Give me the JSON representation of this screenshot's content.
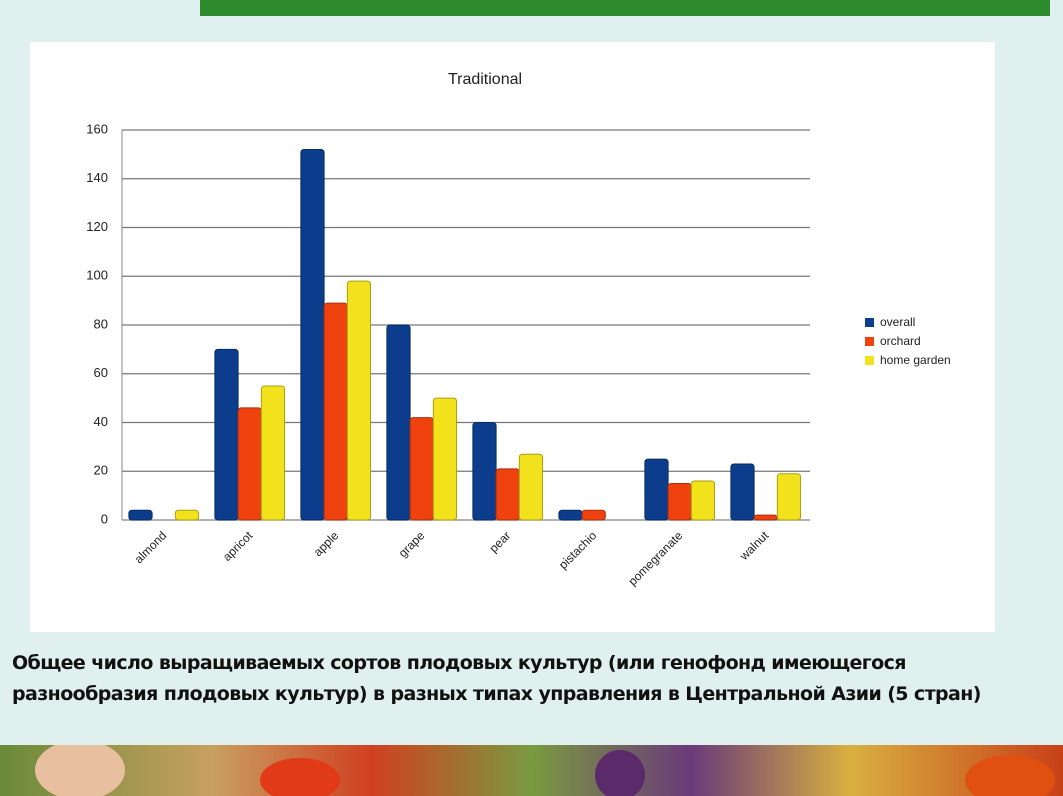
{
  "chart_data": {
    "type": "bar",
    "title": "Traditional",
    "categories": [
      "almond",
      "apricot",
      "apple",
      "grape",
      "pear",
      "pistachio",
      "pomegranate",
      "walnut"
    ],
    "series": [
      {
        "name": "overall",
        "color": "#0b3d8c",
        "values": [
          4,
          70,
          152,
          80,
          40,
          4,
          25,
          23
        ]
      },
      {
        "name": "orchard",
        "color": "#f0420f",
        "values": [
          0,
          46,
          89,
          42,
          21,
          4,
          15,
          2
        ]
      },
      {
        "name": "home garden",
        "color": "#f2e21c",
        "values": [
          4,
          55,
          98,
          50,
          27,
          0,
          16,
          19
        ]
      }
    ],
    "ylim": [
      0,
      160
    ],
    "yticks": [
      0,
      20,
      40,
      60,
      80,
      100,
      120,
      140,
      160
    ],
    "grid": true,
    "legend": "right"
  },
  "caption": "Общее число выращиваемых сортов плодовых культур  (или генофонд имеющегося разнообразия плодовых культур) в разных типах управления в Центральной Азии (5 стран)"
}
